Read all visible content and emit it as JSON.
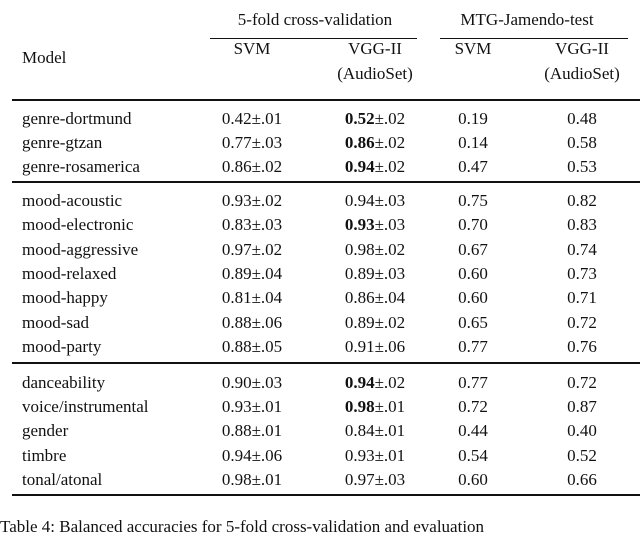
{
  "table": {
    "group_headers": [
      "5-fold cross-validation",
      "MTG-Jamendo-test"
    ],
    "column_headers": [
      "Model",
      "SVM",
      "VGG-II\n(AudioSet)",
      "SVM",
      "VGG-II\n(AudioSet)"
    ],
    "sections": [
      [
        [
          "genre-dortmund",
          "0.42±.01",
          {
            "bold": "0.52",
            "rest": "±.02"
          },
          "0.19",
          "0.48"
        ],
        [
          "genre-gtzan",
          "0.77±.03",
          {
            "bold": "0.86",
            "rest": "±.02"
          },
          "0.14",
          "0.58"
        ],
        [
          "genre-rosamerica",
          "0.86±.02",
          {
            "bold": "0.94",
            "rest": "±.02"
          },
          "0.47",
          "0.53"
        ]
      ],
      [
        [
          "mood-acoustic",
          "0.93±.02",
          "0.94±.03",
          "0.75",
          "0.82"
        ],
        [
          "mood-electronic",
          "0.83±.03",
          {
            "bold": "0.93",
            "rest": "±.03"
          },
          "0.70",
          "0.83"
        ],
        [
          "mood-aggressive",
          "0.97±.02",
          "0.98±.02",
          "0.67",
          "0.74"
        ],
        [
          "mood-relaxed",
          "0.89±.04",
          "0.89±.03",
          "0.60",
          "0.73"
        ],
        [
          "mood-happy",
          "0.81±.04",
          "0.86±.04",
          "0.60",
          "0.71"
        ],
        [
          "mood-sad",
          "0.88±.06",
          "0.89±.02",
          "0.65",
          "0.72"
        ],
        [
          "mood-party",
          "0.88±.05",
          "0.91±.06",
          "0.77",
          "0.76"
        ]
      ],
      [
        [
          "danceability",
          "0.90±.03",
          {
            "bold": "0.94",
            "rest": "±.02"
          },
          "0.77",
          "0.72"
        ],
        [
          "voice/instrumental",
          "0.93±.01",
          {
            "bold": "0.98",
            "rest": "±.01"
          },
          "0.72",
          "0.87"
        ],
        [
          "gender",
          "0.88±.01",
          "0.84±.01",
          "0.44",
          "0.40"
        ],
        [
          "timbre",
          "0.94±.06",
          "0.93±.01",
          "0.54",
          "0.52"
        ],
        [
          "tonal/atonal",
          "0.98±.01",
          "0.97±.03",
          "0.60",
          "0.66"
        ]
      ]
    ],
    "caption": "Table 4: Balanced accuracies for 5-fold cross-validation and evaluation"
  }
}
